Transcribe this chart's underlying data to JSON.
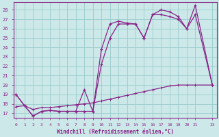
{
  "xlabel": "Windchill (Refroidissement éolien,°C)",
  "bg_color": "#cce8e8",
  "grid_color": "#99cccc",
  "line_color": "#882288",
  "x_ticks": [
    0,
    1,
    2,
    3,
    4,
    5,
    6,
    7,
    8,
    9,
    10,
    11,
    12,
    13,
    14,
    15,
    16,
    17,
    18,
    19,
    20,
    21,
    23
  ],
  "ylim": [
    16.5,
    28.8
  ],
  "xlim": [
    -0.3,
    23.5
  ],
  "series1_x": [
    0,
    1,
    2,
    3,
    4,
    5,
    6,
    7,
    8,
    9,
    10,
    11,
    12,
    13,
    14,
    15,
    16,
    17,
    18,
    19,
    20,
    21,
    23
  ],
  "series1_y": [
    19.0,
    17.8,
    16.7,
    17.2,
    17.3,
    17.2,
    17.2,
    17.2,
    19.5,
    17.2,
    23.8,
    26.5,
    26.8,
    26.6,
    26.5,
    25.0,
    27.5,
    28.0,
    27.8,
    27.3,
    26.0,
    28.5,
    20.0
  ],
  "series2_x": [
    0,
    1,
    2,
    3,
    4,
    5,
    6,
    7,
    8,
    9,
    10,
    11,
    12,
    13,
    14,
    15,
    16,
    17,
    18,
    19,
    20,
    21,
    23
  ],
  "series2_y": [
    19.0,
    17.8,
    16.7,
    17.2,
    17.3,
    17.2,
    17.2,
    17.2,
    17.2,
    17.2,
    22.2,
    25.0,
    26.5,
    26.5,
    26.5,
    25.0,
    27.5,
    27.5,
    27.3,
    27.0,
    26.0,
    27.5,
    20.0
  ],
  "series3_x": [
    0,
    1,
    2,
    3,
    4,
    5,
    6,
    7,
    8,
    9,
    10,
    11,
    12,
    13,
    14,
    15,
    16,
    17,
    18,
    19,
    20,
    21,
    23
  ],
  "series3_y": [
    17.7,
    17.8,
    17.4,
    17.6,
    17.6,
    17.7,
    17.8,
    17.9,
    18.0,
    18.1,
    18.3,
    18.5,
    18.7,
    18.9,
    19.1,
    19.3,
    19.5,
    19.7,
    19.9,
    20.0,
    20.0,
    20.0,
    20.0
  ]
}
